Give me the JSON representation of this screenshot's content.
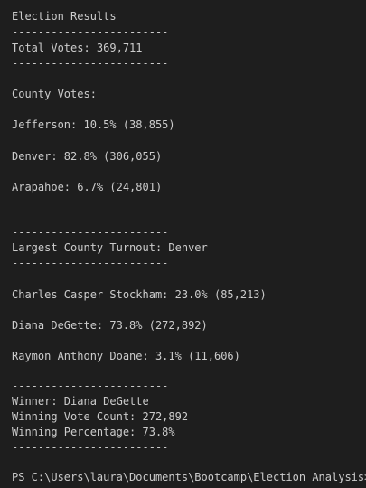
{
  "terminal": {
    "title": "Election Results",
    "separator": "------------------------",
    "total_votes": "Total Votes: 369,711",
    "county_votes_header": "County Votes:",
    "counties": [
      "Jefferson: 10.5% (38,855)",
      "Denver: 82.8% (306,055)",
      "Arapahoe: 6.7% (24,801)"
    ],
    "largest_county": "Largest County Turnout: Denver",
    "candidates": [
      "Charles Casper Stockham: 23.0% (85,213)",
      "Diana DeGette: 73.8% (272,892)",
      "Raymon Anthony Doane: 3.1% (11,606)"
    ],
    "winner": "Winner: Diana DeGette",
    "winning_vote_count": "Winning Vote Count: 272,892",
    "winning_percentage": "Winning Percentage: 73.8%",
    "prompt": "PS C:\\Users\\laura\\Documents\\Bootcamp\\Election_Analysis>"
  }
}
